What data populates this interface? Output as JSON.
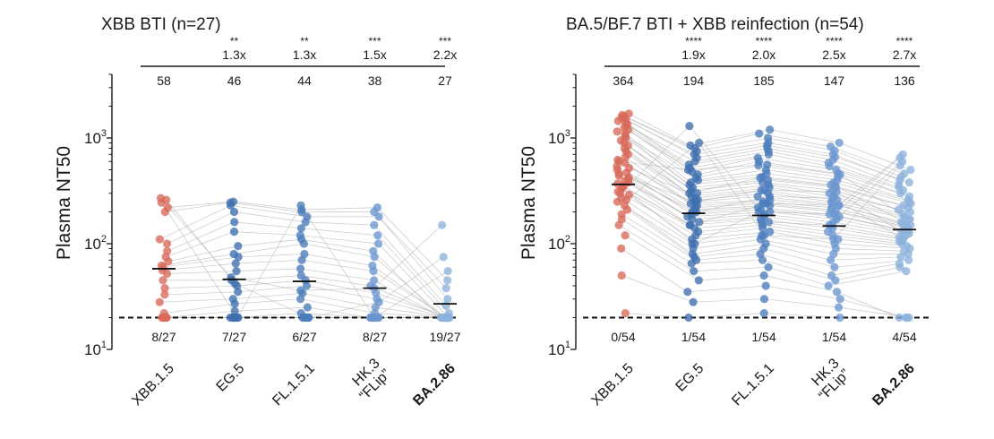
{
  "chart_data": [
    {
      "type": "scatter",
      "title": "XBB BTI (n=27)",
      "ylabel": "Plasma NT50",
      "yscale": "log",
      "ylim": [
        10,
        4000
      ],
      "yticks": [
        {
          "base": "10",
          "exp": "1"
        },
        {
          "base": "10",
          "exp": "2"
        },
        {
          "base": "10",
          "exp": "3"
        }
      ],
      "limit_of_detection": 20,
      "categories": [
        "XBB.1.5",
        "EG.5",
        "FL.1.5.1",
        "HK.3 “FLip”",
        "BA.2.86"
      ],
      "category_lines": [
        [
          "XBB.1.5"
        ],
        [
          "EG.5"
        ],
        [
          "FL.1.5.1"
        ],
        [
          "HK.3",
          "“FLip”"
        ],
        [
          "BA.2.86"
        ]
      ],
      "category_bold": [
        false,
        false,
        false,
        false,
        true
      ],
      "colors": [
        "#d9695a",
        "#3f6fae",
        "#4c7cbc",
        "#6a96cf",
        "#8db2dd"
      ],
      "geometric_mean": [
        58,
        46,
        44,
        38,
        27
      ],
      "below_lod": [
        "8/27",
        "7/27",
        "6/27",
        "8/27",
        "19/27"
      ],
      "significance": [
        "",
        "**",
        "**",
        "***",
        "***"
      ],
      "fold_change": [
        "",
        "1.3x",
        "1.3x",
        "1.5x",
        "2.2x"
      ],
      "values": [
        [
          20,
          20,
          20,
          20,
          20,
          20,
          20,
          20,
          22,
          28,
          33,
          38,
          45,
          52,
          56,
          60,
          62,
          68,
          75,
          85,
          100,
          110,
          200,
          220,
          245,
          260,
          270
        ],
        [
          20,
          20,
          20,
          20,
          20,
          20,
          20,
          23,
          27,
          30,
          35,
          40,
          45,
          55,
          65,
          75,
          80,
          95,
          130,
          160,
          200,
          230,
          245,
          250,
          20,
          42,
          48
        ],
        [
          20,
          20,
          20,
          20,
          20,
          20,
          22,
          25,
          30,
          34,
          40,
          45,
          50,
          58,
          70,
          80,
          100,
          110,
          120,
          140,
          160,
          180,
          200,
          210,
          230,
          20,
          36
        ],
        [
          20,
          20,
          20,
          20,
          20,
          20,
          20,
          20,
          22,
          25,
          30,
          34,
          40,
          45,
          55,
          62,
          75,
          85,
          100,
          120,
          150,
          180,
          200,
          220,
          20,
          28,
          38
        ],
        [
          20,
          20,
          20,
          20,
          20,
          20,
          20,
          20,
          20,
          20,
          20,
          20,
          20,
          20,
          20,
          20,
          20,
          20,
          20,
          22,
          26,
          30,
          38,
          45,
          55,
          75,
          150
        ]
      ]
    },
    {
      "type": "scatter",
      "title": "BA.5/BF.7 BTI + XBB reinfection (n=54)",
      "ylabel": "Plasma NT50",
      "yscale": "log",
      "ylim": [
        10,
        4000
      ],
      "yticks": [
        {
          "base": "10",
          "exp": "1"
        },
        {
          "base": "10",
          "exp": "2"
        },
        {
          "base": "10",
          "exp": "3"
        }
      ],
      "limit_of_detection": 20,
      "categories": [
        "XBB.1.5",
        "EG.5",
        "FL.1.5.1",
        "HK.3 “FLip”",
        "BA.2.86"
      ],
      "category_lines": [
        [
          "XBB.1.5"
        ],
        [
          "EG.5"
        ],
        [
          "FL.1.5.1"
        ],
        [
          "HK.3",
          "“FLip”"
        ],
        [
          "BA.2.86"
        ]
      ],
      "category_bold": [
        false,
        false,
        false,
        false,
        true
      ],
      "colors": [
        "#d9695a",
        "#3f6fae",
        "#4c7cbc",
        "#6a96cf",
        "#8db2dd"
      ],
      "geometric_mean": [
        364,
        194,
        185,
        147,
        136
      ],
      "below_lod": [
        "0/54",
        "1/54",
        "1/54",
        "1/54",
        "4/54"
      ],
      "significance": [
        "",
        "****",
        "****",
        "****",
        "****"
      ],
      "fold_change": [
        "",
        "1.9x",
        "2.0x",
        "2.5x",
        "2.7x"
      ],
      "values": [
        [
          22,
          50,
          90,
          120,
          150,
          170,
          190,
          210,
          230,
          250,
          270,
          290,
          310,
          330,
          350,
          370,
          390,
          410,
          440,
          470,
          500,
          540,
          580,
          620,
          660,
          700,
          750,
          800,
          850,
          900,
          950,
          1000,
          1050,
          1100,
          1150,
          1200,
          1250,
          1300,
          1350,
          1400,
          1450,
          1500,
          1550,
          1600,
          1650,
          1700,
          260,
          300,
          340,
          380,
          420,
          460,
          520,
          600
        ],
        [
          20,
          28,
          35,
          45,
          55,
          65,
          70,
          75,
          80,
          90,
          100,
          110,
          120,
          130,
          140,
          150,
          160,
          170,
          180,
          190,
          200,
          210,
          220,
          230,
          240,
          250,
          260,
          270,
          280,
          300,
          320,
          340,
          360,
          380,
          400,
          420,
          450,
          480,
          520,
          560,
          600,
          650,
          700,
          750,
          800,
          850,
          900,
          1300,
          100,
          150,
          200,
          250,
          300,
          500
        ],
        [
          22,
          30,
          40,
          50,
          60,
          70,
          80,
          90,
          100,
          110,
          120,
          130,
          140,
          150,
          160,
          170,
          180,
          190,
          200,
          210,
          220,
          230,
          240,
          250,
          260,
          280,
          300,
          320,
          340,
          360,
          380,
          400,
          430,
          460,
          500,
          550,
          600,
          650,
          700,
          750,
          800,
          850,
          900,
          1000,
          1100,
          1200,
          120,
          160,
          200,
          240,
          280,
          320,
          420,
          560
        ],
        [
          20,
          25,
          30,
          35,
          40,
          45,
          50,
          60,
          70,
          80,
          90,
          100,
          110,
          120,
          130,
          140,
          150,
          160,
          170,
          180,
          190,
          200,
          210,
          220,
          230,
          240,
          250,
          260,
          280,
          300,
          320,
          340,
          360,
          380,
          400,
          430,
          460,
          500,
          540,
          580,
          620,
          660,
          700,
          760,
          830,
          900,
          110,
          150,
          190,
          230,
          270,
          310,
          350,
          450
        ],
        [
          20,
          20,
          20,
          20,
          55,
          60,
          65,
          70,
          75,
          80,
          85,
          90,
          95,
          100,
          105,
          110,
          115,
          120,
          125,
          130,
          135,
          140,
          145,
          150,
          155,
          160,
          170,
          180,
          190,
          200,
          210,
          220,
          230,
          240,
          250,
          260,
          280,
          300,
          320,
          340,
          360,
          380,
          400,
          430,
          460,
          500,
          550,
          600,
          650,
          700,
          110,
          130,
          150,
          170
        ]
      ]
    }
  ]
}
